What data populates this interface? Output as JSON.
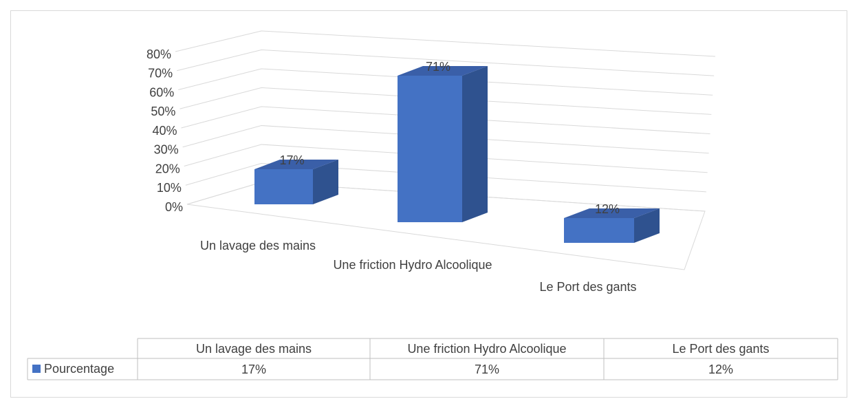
{
  "chart_data": {
    "type": "bar3d",
    "categories": [
      "Un lavage des mains",
      "Une friction Hydro Alcoolique",
      "Le Port des gants"
    ],
    "series": [
      {
        "name": "Pourcentage",
        "color": "#4472c4",
        "values": [
          17,
          71,
          12
        ],
        "value_labels": [
          "17%",
          "71%",
          "12%"
        ]
      }
    ],
    "ylim": [
      0,
      80
    ],
    "yticks": [
      {
        "value": 0,
        "label": "0%"
      },
      {
        "value": 10,
        "label": "10%"
      },
      {
        "value": 20,
        "label": "20%"
      },
      {
        "value": 30,
        "label": "30%"
      },
      {
        "value": 40,
        "label": "40%"
      },
      {
        "value": 50,
        "label": "50%"
      },
      {
        "value": 60,
        "label": "60%"
      },
      {
        "value": 70,
        "label": "70%"
      },
      {
        "value": 80,
        "label": "80%"
      }
    ],
    "grid": true
  }
}
